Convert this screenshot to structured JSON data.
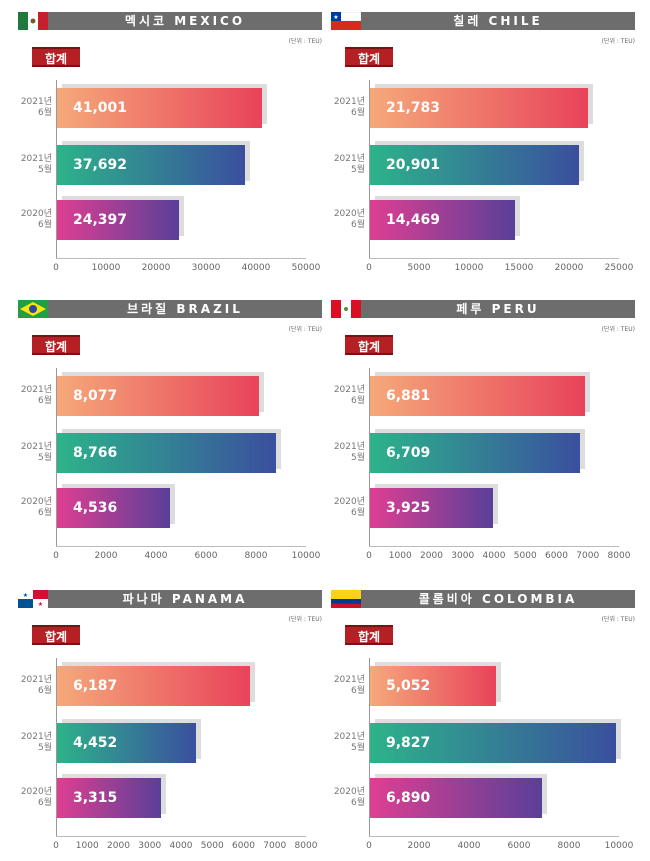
{
  "unit_label": "(단위 : TEU)",
  "badge_label": "합계",
  "categories": [
    [
      "2021년",
      "6월"
    ],
    [
      "2021년",
      "5월"
    ],
    [
      "2020년",
      "6월"
    ]
  ],
  "chart_data": [
    {
      "type": "bar",
      "orientation": "horizontal",
      "title": "멕시코 MEXICO",
      "flag": "mexico",
      "values": [
        41001,
        37692,
        24397
      ],
      "value_labels": [
        "41,001",
        "37,692",
        "24,397"
      ],
      "xlim": [
        0,
        50000
      ],
      "ticks": [
        0,
        10000,
        20000,
        30000,
        40000,
        50000
      ]
    },
    {
      "type": "bar",
      "orientation": "horizontal",
      "title": "칠레 CHILE",
      "flag": "chile",
      "values": [
        21783,
        20901,
        14469
      ],
      "value_labels": [
        "21,783",
        "20,901",
        "14,469"
      ],
      "xlim": [
        0,
        25000
      ],
      "ticks": [
        0,
        5000,
        10000,
        15000,
        20000,
        25000
      ]
    },
    {
      "type": "bar",
      "orientation": "horizontal",
      "title": "브라질 BRAZIL",
      "flag": "brazil",
      "values": [
        8077,
        8766,
        4536
      ],
      "value_labels": [
        "8,077",
        "8,766",
        "4,536"
      ],
      "xlim": [
        0,
        10000
      ],
      "ticks": [
        0,
        2000,
        4000,
        6000,
        8000,
        10000
      ]
    },
    {
      "type": "bar",
      "orientation": "horizontal",
      "title": "페루 PERU",
      "flag": "peru",
      "values": [
        6881,
        6709,
        3925
      ],
      "value_labels": [
        "6,881",
        "6,709",
        "3,925"
      ],
      "xlim": [
        0,
        8000
      ],
      "ticks": [
        0,
        1000,
        2000,
        3000,
        4000,
        5000,
        6000,
        7000,
        8000
      ]
    },
    {
      "type": "bar",
      "orientation": "horizontal",
      "title": "파나마 PANAMA",
      "flag": "panama",
      "values": [
        6187,
        4452,
        3315
      ],
      "value_labels": [
        "6,187",
        "4,452",
        "3,315"
      ],
      "xlim": [
        0,
        8000
      ],
      "ticks": [
        0,
        1000,
        2000,
        3000,
        4000,
        5000,
        6000,
        7000,
        8000
      ]
    },
    {
      "type": "bar",
      "orientation": "horizontal",
      "title": "콜롬비아 COLOMBIA",
      "flag": "colombia",
      "values": [
        5052,
        9827,
        6890
      ],
      "value_labels": [
        "5,052",
        "9,827",
        "6,890"
      ],
      "xlim": [
        0,
        10000
      ],
      "ticks": [
        0,
        2000,
        4000,
        6000,
        8000,
        10000
      ]
    }
  ]
}
